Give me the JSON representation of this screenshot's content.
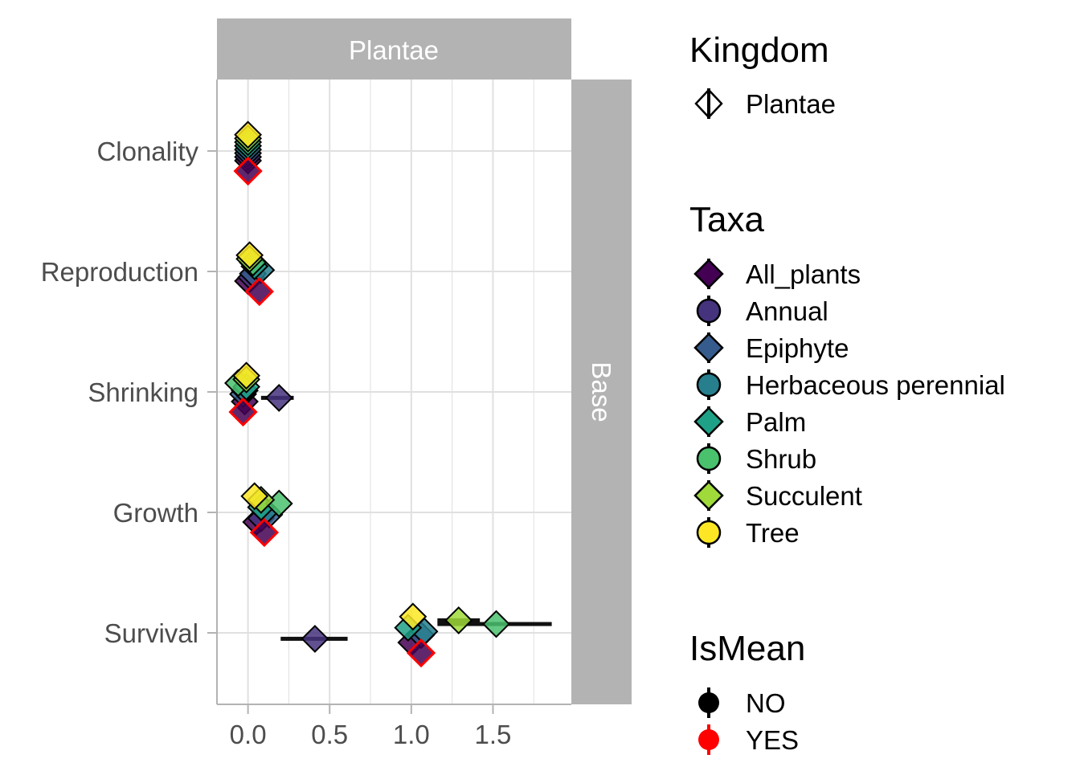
{
  "colors": {
    "All_plants": "#440154",
    "Annual": "#46337E",
    "Epiphyte": "#365C8D",
    "Herbaceous perennial": "#277F8E",
    "Palm": "#1FA187",
    "Shrub": "#4AC16D",
    "Succulent": "#9FDA3A",
    "Tree": "#FDE725",
    "mean_outline": "#FF0000",
    "strip_bg": "#B3B3B3",
    "strip_text": "#FFFFFF",
    "grid": "#E0E0E0",
    "axis_text": "#4D4D4D"
  },
  "legend": {
    "kingdom": {
      "title": "Kingdom",
      "items": [
        "Plantae"
      ]
    },
    "taxa": {
      "title": "Taxa",
      "items": [
        {
          "label": "All_plants",
          "shape": "diamond"
        },
        {
          "label": "Annual",
          "shape": "circle"
        },
        {
          "label": "Epiphyte",
          "shape": "diamond"
        },
        {
          "label": "Herbaceous perennial",
          "shape": "circle"
        },
        {
          "label": "Palm",
          "shape": "diamond"
        },
        {
          "label": "Shrub",
          "shape": "circle"
        },
        {
          "label": "Succulent",
          "shape": "diamond"
        },
        {
          "label": "Tree",
          "shape": "circle"
        }
      ]
    },
    "ismean": {
      "title": "IsMean",
      "items": [
        "NO",
        "YES"
      ]
    }
  },
  "chart_data": {
    "type": "scatter",
    "facet_col": "Plantae",
    "facet_row": "Base",
    "categories": [
      "Clonality",
      "Reproduction",
      "Shrinking",
      "Growth",
      "Survival"
    ],
    "xticks": [
      0.0,
      0.5,
      1.0,
      1.5
    ],
    "xtick_labels": [
      "0.0",
      "0.5",
      "1.0",
      "1.5"
    ],
    "xlim": [
      -0.19,
      1.98
    ],
    "grid": true,
    "legend_position": "right",
    "points": [
      {
        "cat": "Clonality",
        "taxa": "All_plants",
        "x": 0.0,
        "mean": false
      },
      {
        "cat": "Clonality",
        "taxa": "Annual",
        "x": 0.0,
        "mean": false
      },
      {
        "cat": "Clonality",
        "taxa": "Epiphyte",
        "x": 0.0,
        "mean": false
      },
      {
        "cat": "Clonality",
        "taxa": "Herbaceous perennial",
        "x": 0.0,
        "mean": false
      },
      {
        "cat": "Clonality",
        "taxa": "Palm",
        "x": 0.0,
        "mean": false
      },
      {
        "cat": "Clonality",
        "taxa": "Shrub",
        "x": 0.0,
        "mean": false
      },
      {
        "cat": "Clonality",
        "taxa": "Succulent",
        "x": 0.0,
        "mean": false
      },
      {
        "cat": "Clonality",
        "taxa": "Tree",
        "x": 0.0,
        "mean": false
      },
      {
        "cat": "Clonality",
        "taxa": "All_plants",
        "x": 0.0,
        "mean": true
      },
      {
        "cat": "Reproduction",
        "taxa": "All_plants",
        "x": 0.0,
        "mean": false
      },
      {
        "cat": "Reproduction",
        "taxa": "Annual",
        "x": 0.02,
        "mean": false
      },
      {
        "cat": "Reproduction",
        "taxa": "Epiphyte",
        "x": 0.03,
        "mean": false
      },
      {
        "cat": "Reproduction",
        "taxa": "Herbaceous perennial",
        "x": 0.08,
        "mean": false
      },
      {
        "cat": "Reproduction",
        "taxa": "Palm",
        "x": 0.04,
        "mean": false
      },
      {
        "cat": "Reproduction",
        "taxa": "Shrub",
        "x": 0.03,
        "mean": false
      },
      {
        "cat": "Reproduction",
        "taxa": "Succulent",
        "x": 0.01,
        "mean": false
      },
      {
        "cat": "Reproduction",
        "taxa": "Tree",
        "x": 0.01,
        "mean": false
      },
      {
        "cat": "Reproduction",
        "taxa": "All_plants",
        "x": 0.07,
        "mean": true
      },
      {
        "cat": "Shrinking",
        "taxa": "All_plants",
        "x": -0.02,
        "mean": false
      },
      {
        "cat": "Shrinking",
        "taxa": "Annual",
        "x": 0.19,
        "mean": false,
        "ci": [
          0.08,
          0.28
        ]
      },
      {
        "cat": "Shrinking",
        "taxa": "Epiphyte",
        "x": -0.03,
        "mean": false
      },
      {
        "cat": "Shrinking",
        "taxa": "Herbaceous perennial",
        "x": -0.02,
        "mean": false
      },
      {
        "cat": "Shrinking",
        "taxa": "Palm",
        "x": -0.01,
        "mean": false
      },
      {
        "cat": "Shrinking",
        "taxa": "Shrub",
        "x": -0.06,
        "mean": false
      },
      {
        "cat": "Shrinking",
        "taxa": "Succulent",
        "x": -0.01,
        "mean": false
      },
      {
        "cat": "Shrinking",
        "taxa": "Tree",
        "x": -0.01,
        "mean": false
      },
      {
        "cat": "Shrinking",
        "taxa": "All_plants",
        "x": -0.03,
        "mean": true
      },
      {
        "cat": "Growth",
        "taxa": "All_plants",
        "x": 0.05,
        "mean": false
      },
      {
        "cat": "Growth",
        "taxa": "Annual",
        "x": 0.08,
        "mean": false
      },
      {
        "cat": "Growth",
        "taxa": "Epiphyte",
        "x": 0.13,
        "mean": false
      },
      {
        "cat": "Growth",
        "taxa": "Herbaceous perennial",
        "x": 0.11,
        "mean": false
      },
      {
        "cat": "Growth",
        "taxa": "Palm",
        "x": 0.08,
        "mean": false
      },
      {
        "cat": "Growth",
        "taxa": "Shrub",
        "x": 0.19,
        "mean": false
      },
      {
        "cat": "Growth",
        "taxa": "Succulent",
        "x": 0.08,
        "mean": false
      },
      {
        "cat": "Growth",
        "taxa": "Tree",
        "x": 0.04,
        "mean": false
      },
      {
        "cat": "Growth",
        "taxa": "All_plants",
        "x": 0.1,
        "mean": true
      },
      {
        "cat": "Survival",
        "taxa": "All_plants",
        "x": 1.0,
        "mean": false
      },
      {
        "cat": "Survival",
        "taxa": "Annual",
        "x": 0.41,
        "mean": false,
        "ci": [
          0.2,
          0.61
        ]
      },
      {
        "cat": "Survival",
        "taxa": "Epiphyte",
        "x": 1.06,
        "mean": false
      },
      {
        "cat": "Survival",
        "taxa": "Herbaceous perennial",
        "x": 1.08,
        "mean": false
      },
      {
        "cat": "Survival",
        "taxa": "Palm",
        "x": 0.98,
        "mean": false
      },
      {
        "cat": "Survival",
        "taxa": "Shrub",
        "x": 1.52,
        "mean": false,
        "ci": [
          1.16,
          1.86
        ]
      },
      {
        "cat": "Survival",
        "taxa": "Succulent",
        "x": 1.29,
        "mean": false,
        "ci": [
          1.16,
          1.42
        ]
      },
      {
        "cat": "Survival",
        "taxa": "Tree",
        "x": 1.01,
        "mean": false
      },
      {
        "cat": "Survival",
        "taxa": "All_plants",
        "x": 1.06,
        "mean": true
      }
    ]
  }
}
